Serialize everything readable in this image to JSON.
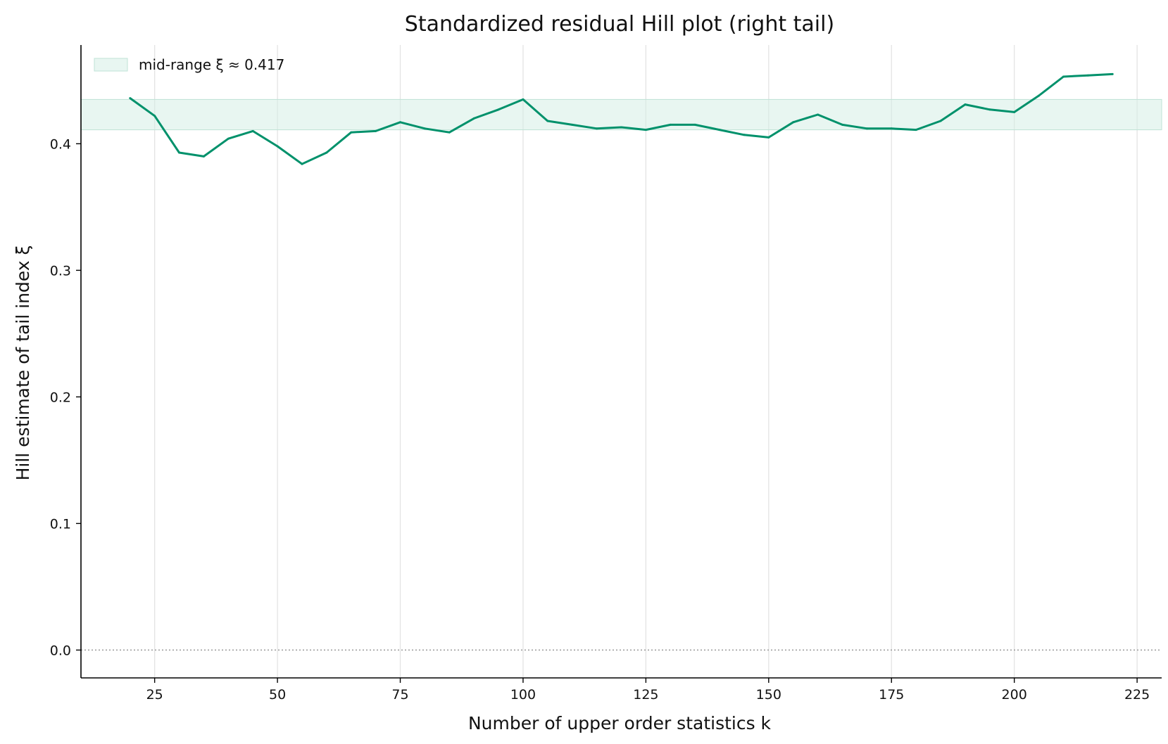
{
  "chart_data": {
    "type": "line",
    "title": "Standardized residual Hill plot (right tail)",
    "xlabel": "Number of upper order statistics k",
    "ylabel": "Hill estimate of tail index ξ",
    "xlim": [
      10,
      230
    ],
    "ylim": [
      -0.022,
      0.478
    ],
    "xticks": [
      25,
      50,
      75,
      100,
      125,
      150,
      175,
      200,
      225
    ],
    "yticks": [
      0.0,
      0.1,
      0.2,
      0.3,
      0.4
    ],
    "ytick_labels": [
      "0.0",
      "0.1",
      "0.2",
      "0.3",
      "0.4"
    ],
    "grid": "vertical",
    "reference_line": 0.0,
    "band": {
      "label": "mid-range ξ ≈ 0.417",
      "lower": 0.411,
      "upper": 0.435,
      "color": "#d6eee6"
    },
    "legend_position": "top-left",
    "series": [
      {
        "color": "#00916b",
        "x": [
          20,
          25,
          30,
          35,
          40,
          45,
          50,
          55,
          60,
          65,
          70,
          75,
          80,
          85,
          90,
          95,
          100,
          105,
          110,
          115,
          120,
          125,
          130,
          135,
          140,
          145,
          150,
          155,
          160,
          165,
          170,
          175,
          180,
          185,
          190,
          195,
          200,
          205,
          210,
          215,
          220
        ],
        "y": [
          0.436,
          0.422,
          0.393,
          0.39,
          0.404,
          0.41,
          0.398,
          0.384,
          0.393,
          0.409,
          0.41,
          0.417,
          0.412,
          0.409,
          0.42,
          0.427,
          0.435,
          0.418,
          0.415,
          0.412,
          0.413,
          0.411,
          0.415,
          0.415,
          0.411,
          0.407,
          0.405,
          0.417,
          0.423,
          0.415,
          0.412,
          0.412,
          0.411,
          0.418,
          0.431,
          0.427,
          0.425,
          0.438,
          0.453,
          0.454,
          0.455
        ]
      }
    ]
  }
}
